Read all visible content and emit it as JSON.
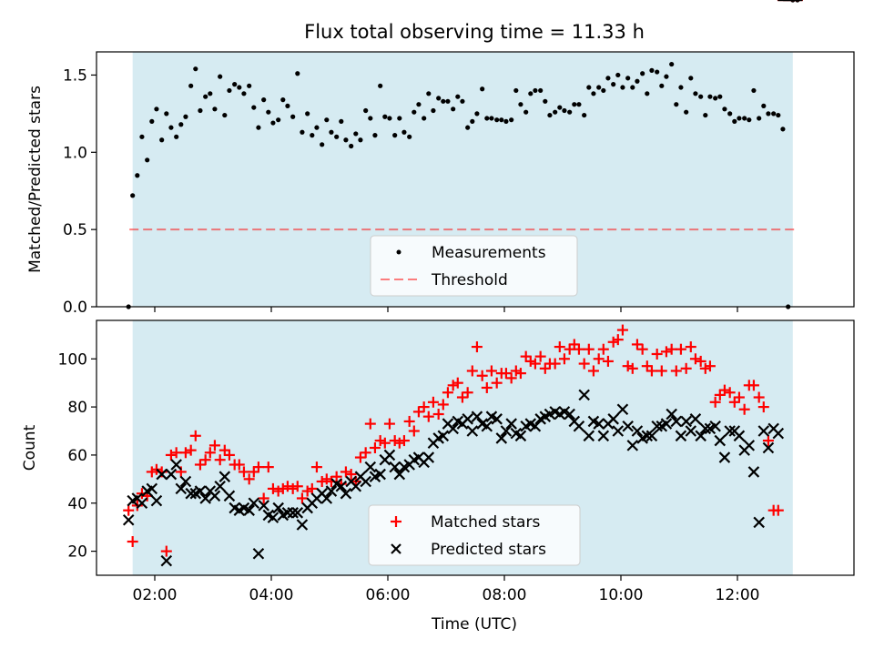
{
  "title": "Flux total observing time = 11.33 h",
  "colors": {
    "shade": "#add8e6",
    "threshold": "#ff0000",
    "matched": "#ff0000",
    "predicted": "#000000",
    "measure": "#000000"
  },
  "chart_data": [
    {
      "type": "scatter",
      "ylabel": "Matched/Predicted stars",
      "xlim": [
        1.0,
        14.0
      ],
      "ylim": [
        0,
        1.65
      ],
      "yticks": [
        "0.0",
        "0.5",
        "1.0",
        "1.5"
      ],
      "shaded_span_hours": [
        1.62,
        12.95
      ],
      "threshold": 0.5,
      "legend": [
        "Measurements",
        "Threshold"
      ],
      "legend_position": "lower center",
      "x_hours": [
        1.55,
        1.62,
        1.7,
        1.78,
        1.87,
        1.95,
        2.03,
        2.12,
        2.2,
        2.28,
        2.37,
        2.45,
        2.53,
        2.62,
        2.7,
        2.78,
        2.87,
        2.95,
        3.03,
        3.12,
        3.2,
        3.28,
        3.37,
        3.45,
        3.53,
        3.62,
        3.7,
        3.78,
        3.87,
        3.95,
        4.03,
        4.12,
        4.2,
        4.28,
        4.37,
        4.45,
        4.53,
        4.62,
        4.7,
        4.78,
        4.87,
        4.95,
        5.03,
        5.12,
        5.2,
        5.28,
        5.37,
        5.45,
        5.53,
        5.62,
        5.7,
        5.78,
        5.87,
        5.95,
        6.03,
        6.12,
        6.2,
        6.28,
        6.37,
        6.45,
        6.53,
        6.62,
        6.7,
        6.78,
        6.87,
        6.95,
        7.03,
        7.12,
        7.2,
        7.28,
        7.37,
        7.45,
        7.53,
        7.62,
        7.7,
        7.78,
        7.87,
        7.95,
        8.03,
        8.12,
        8.2,
        8.28,
        8.37,
        8.45,
        8.53,
        8.62,
        8.7,
        8.78,
        8.87,
        8.95,
        9.03,
        9.12,
        9.2,
        9.28,
        9.37,
        9.45,
        9.53,
        9.62,
        9.7,
        9.78,
        9.87,
        9.95,
        10.03,
        10.12,
        10.2,
        10.28,
        10.37,
        10.45,
        10.53,
        10.62,
        10.7,
        10.78,
        10.87,
        10.95,
        11.03,
        11.12,
        11.2,
        11.28,
        11.37,
        11.45,
        11.53,
        11.62,
        11.7,
        11.78,
        11.87,
        11.95,
        12.03,
        12.12,
        12.2,
        12.28,
        12.37,
        12.45,
        12.53,
        12.62,
        12.7,
        12.78,
        12.87,
        12.95,
        13.03
      ],
      "ratio": [
        0.0,
        0.72,
        0.85,
        1.1,
        0.95,
        1.2,
        1.28,
        1.08,
        1.25,
        1.16,
        1.1,
        1.18,
        1.23,
        1.43,
        1.54,
        1.27,
        1.36,
        1.38,
        1.28,
        1.49,
        1.24,
        1.4,
        1.44,
        1.42,
        1.38,
        1.43,
        1.29,
        1.16,
        1.34,
        1.26,
        1.19,
        1.21,
        1.34,
        1.3,
        1.23,
        1.51,
        1.13,
        1.25,
        1.11,
        1.16,
        1.05,
        1.21,
        1.13,
        1.1,
        1.2,
        1.08,
        1.04,
        1.12,
        1.08,
        1.27,
        1.22,
        1.11,
        1.43,
        1.23,
        1.22,
        1.11,
        1.22,
        1.13,
        1.1,
        1.26,
        1.31,
        1.22,
        1.38,
        1.27,
        1.35,
        1.33,
        1.33,
        1.28,
        1.36,
        1.33,
        1.16,
        1.2,
        1.25,
        1.41,
        1.22,
        1.22,
        1.21,
        1.21,
        1.2,
        1.21,
        1.4,
        1.31,
        1.26,
        1.38,
        1.4,
        1.4,
        1.33,
        1.24,
        1.26,
        1.29,
        1.27,
        1.26,
        1.31,
        1.31,
        1.24,
        1.42,
        1.38,
        1.42,
        1.4,
        1.48,
        1.44,
        1.5,
        1.42,
        1.48,
        1.42,
        1.46,
        1.51,
        1.38,
        1.53,
        1.52,
        1.43,
        1.49,
        1.57,
        1.31,
        1.42,
        1.26,
        1.48,
        1.38,
        1.36,
        1.24,
        1.36,
        1.35,
        1.36,
        1.28,
        1.25,
        1.2,
        1.22,
        1.22,
        1.21,
        1.4,
        1.22,
        1.3,
        1.25,
        1.25,
        1.24,
        1.15,
        0.0
      ]
    },
    {
      "type": "scatter",
      "xlabel": "Time (UTC)",
      "ylabel": "Count",
      "xlim": [
        1.0,
        14.0
      ],
      "ylim": [
        10,
        116
      ],
      "xticks": [
        "02:00",
        "04:00",
        "06:00",
        "08:00",
        "10:00",
        "12:00"
      ],
      "xtick_hours": [
        2,
        4,
        6,
        8,
        10,
        12
      ],
      "yticks": [
        "20",
        "40",
        "60",
        "80",
        "100"
      ],
      "shaded_span_hours": [
        1.62,
        12.95
      ],
      "legend": [
        "Matched stars",
        "Predicted stars"
      ],
      "legend_position": "lower center",
      "x_hours": [
        1.55,
        1.62,
        1.7,
        1.78,
        1.87,
        1.95,
        2.03,
        2.12,
        2.2,
        2.28,
        2.37,
        2.45,
        2.53,
        2.62,
        2.7,
        2.78,
        2.87,
        2.95,
        3.03,
        3.12,
        3.2,
        3.28,
        3.37,
        3.45,
        3.53,
        3.62,
        3.7,
        3.78,
        3.87,
        3.95,
        4.03,
        4.12,
        4.2,
        4.28,
        4.37,
        4.45,
        4.53,
        4.62,
        4.7,
        4.78,
        4.87,
        4.95,
        5.03,
        5.12,
        5.2,
        5.28,
        5.37,
        5.45,
        5.53,
        5.62,
        5.7,
        5.78,
        5.87,
        5.95,
        6.03,
        6.12,
        6.2,
        6.28,
        6.37,
        6.45,
        6.53,
        6.62,
        6.7,
        6.78,
        6.87,
        6.95,
        7.03,
        7.12,
        7.2,
        7.28,
        7.37,
        7.45,
        7.53,
        7.62,
        7.7,
        7.78,
        7.87,
        7.95,
        8.03,
        8.12,
        8.2,
        8.28,
        8.37,
        8.45,
        8.53,
        8.62,
        8.7,
        8.78,
        8.87,
        8.95,
        9.03,
        9.12,
        9.2,
        9.28,
        9.37,
        9.45,
        9.53,
        9.62,
        9.7,
        9.78,
        9.87,
        9.95,
        10.03,
        10.12,
        10.2,
        10.28,
        10.37,
        10.45,
        10.53,
        10.62,
        10.7,
        10.78,
        10.87,
        10.95,
        11.03,
        11.12,
        11.2,
        11.28,
        11.37,
        11.45,
        11.53,
        11.62,
        11.7,
        11.78,
        11.87,
        11.95,
        12.03,
        12.12,
        12.2,
        12.28,
        12.37,
        12.45,
        12.53,
        12.62,
        12.7,
        12.78,
        12.87,
        12.95,
        13.03
      ],
      "series": [
        {
          "name": "Matched stars",
          "marker": "+",
          "values": [
            37,
            24,
            39,
            44,
            43,
            53,
            54,
            53,
            20,
            60,
            61,
            53,
            61,
            62,
            68,
            56,
            58,
            61,
            64,
            58,
            62,
            60,
            56,
            56,
            53,
            50,
            53,
            55,
            42,
            55,
            46,
            45,
            46,
            47,
            46,
            47,
            42,
            45,
            46,
            55,
            49,
            50,
            49,
            51,
            48,
            53,
            52,
            49,
            59,
            61,
            73,
            63,
            66,
            65,
            73,
            66,
            65,
            66,
            74,
            70,
            78,
            80,
            76,
            82,
            77,
            81,
            86,
            89,
            90,
            84,
            86,
            95,
            105,
            93,
            88,
            95,
            90,
            94,
            94,
            92,
            95,
            94,
            101,
            99,
            98,
            101,
            96,
            98,
            98,
            105,
            100,
            104,
            106,
            104,
            98,
            104,
            95,
            100,
            104,
            99,
            107,
            108,
            112,
            97,
            96,
            106,
            104,
            97,
            95,
            102,
            95,
            103,
            104,
            95,
            104,
            96,
            105,
            100,
            99,
            96,
            97,
            82,
            85,
            87,
            86,
            82,
            84,
            79,
            89,
            89,
            84,
            80,
            66,
            37,
            37
          ]
        },
        {
          "name": "Predicted stars",
          "marker": "x",
          "values": [
            33,
            41,
            42,
            40,
            45,
            46,
            41,
            52,
            16,
            52,
            56,
            46,
            49,
            44,
            44,
            45,
            42,
            45,
            43,
            47,
            51,
            43,
            38,
            37,
            38,
            37,
            40,
            19,
            39,
            35,
            34,
            38,
            35,
            36,
            36,
            36,
            31,
            38,
            40,
            42,
            44,
            42,
            45,
            48,
            47,
            44,
            49,
            47,
            51,
            49,
            55,
            51,
            52,
            58,
            60,
            55,
            52,
            55,
            56,
            58,
            59,
            57,
            59,
            65,
            67,
            68,
            73,
            71,
            74,
            73,
            75,
            70,
            76,
            73,
            72,
            76,
            75,
            67,
            70,
            73,
            69,
            68,
            72,
            73,
            72,
            75,
            76,
            77,
            78,
            77,
            78,
            77,
            74,
            72,
            85,
            68,
            74,
            73,
            68,
            73,
            75,
            70,
            79,
            72,
            64,
            70,
            67,
            68,
            68,
            72,
            72,
            73,
            77,
            74,
            68,
            74,
            70,
            75,
            68,
            71,
            71,
            72,
            66,
            59,
            70,
            70,
            68,
            62,
            64,
            53,
            32,
            70,
            63,
            71,
            69
          ]
        }
      ]
    }
  ]
}
